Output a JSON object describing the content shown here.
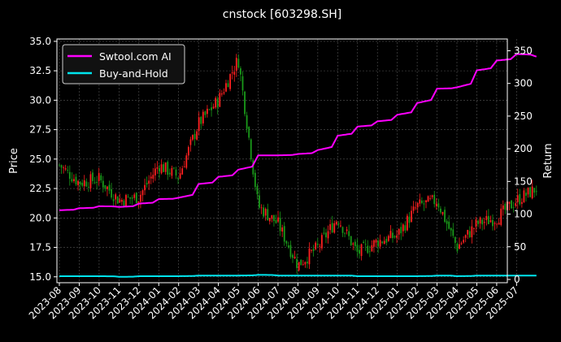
{
  "chart_data": {
    "type": "line",
    "title": "cnstock [603298.SH]",
    "ylabel_left": "Price",
    "ylabel_right": "Return",
    "xlabel": "",
    "grid": true,
    "legend_position": "top-left",
    "ylim_left": [
      14.5,
      35.2
    ],
    "ylim_right": [
      -5,
      368
    ],
    "y_ticks_left": [
      "15.0",
      "17.5",
      "20.0",
      "22.5",
      "25.0",
      "27.5",
      "30.0",
      "32.5",
      "35.0"
    ],
    "y_ticks_right": [
      "0",
      "50",
      "100",
      "150",
      "200",
      "250",
      "300",
      "350"
    ],
    "x_ticks": [
      "2023-08",
      "2023-09",
      "2023-10",
      "2023-11",
      "2023-12",
      "2024-01",
      "2024-02",
      "2024-03",
      "2024-04",
      "2024-05",
      "2024-06",
      "2024-07",
      "2024-08",
      "2024-09",
      "2024-10",
      "2024-11",
      "2024-12",
      "2025-01",
      "2025-02",
      "2025-03",
      "2025-04",
      "2025-05",
      "2025-06",
      "2025-07"
    ],
    "colors": {
      "up": "#ff2020",
      "down": "#1a9a1a",
      "strategy": "#ff00ff",
      "buyhold": "#00e5ee"
    },
    "series": [
      {
        "name": "Swtool.com AI",
        "axis": "right",
        "x": [
          "2023-08",
          "2023-09",
          "2023-10",
          "2023-11",
          "2023-12",
          "2024-01",
          "2024-02",
          "2024-03",
          "2024-04",
          "2024-05",
          "2024-06",
          "2024-07",
          "2024-08",
          "2024-09",
          "2024-10",
          "2024-11",
          "2024-12",
          "2025-01",
          "2025-02",
          "2025-03",
          "2025-04",
          "2025-05",
          "2025-06",
          "2025-07",
          "2025-08"
        ],
        "values": [
          106,
          109,
          112,
          111,
          116,
          123,
          125,
          146,
          157,
          168,
          190,
          190,
          192,
          198,
          220,
          234,
          242,
          252,
          270,
          292,
          294,
          320,
          335,
          345,
          341
        ]
      },
      {
        "name": "Buy-and-Hold",
        "axis": "right",
        "x": [
          "2023-08",
          "2023-09",
          "2023-10",
          "2023-11",
          "2023-12",
          "2024-01",
          "2024-02",
          "2024-03",
          "2024-04",
          "2024-05",
          "2024-06",
          "2024-07",
          "2024-08",
          "2024-09",
          "2024-10",
          "2024-11",
          "2024-12",
          "2025-01",
          "2025-02",
          "2025-03",
          "2025-04",
          "2025-05",
          "2025-06",
          "2025-07",
          "2025-08"
        ],
        "values": [
          5,
          5,
          5,
          4,
          5,
          5,
          5,
          6,
          6,
          6,
          7,
          6,
          6,
          6,
          6,
          5,
          5,
          5,
          5,
          6,
          5,
          6,
          6,
          6,
          6
        ]
      },
      {
        "name": "Price",
        "axis": "left",
        "kind": "candlestick",
        "x": [
          "2023-08",
          "2023-09",
          "2023-10",
          "2023-11",
          "2023-12",
          "2024-01",
          "2024-02",
          "2024-03",
          "2024-04",
          "2024-05",
          "2024-06",
          "2024-07",
          "2024-08",
          "2024-09",
          "2024-10",
          "2024-11",
          "2024-12",
          "2025-01",
          "2025-02",
          "2025-03",
          "2025-04",
          "2025-05",
          "2025-06",
          "2025-07",
          "2025-08"
        ],
        "values": [
          24.5,
          23.0,
          23.3,
          21.5,
          21.8,
          24.5,
          23.5,
          28.0,
          30.0,
          33.5,
          21.0,
          19.5,
          16.0,
          17.5,
          20.0,
          17.0,
          18.0,
          18.5,
          21.0,
          21.5,
          17.5,
          19.5,
          20.0,
          21.5,
          22.5
        ]
      }
    ]
  }
}
